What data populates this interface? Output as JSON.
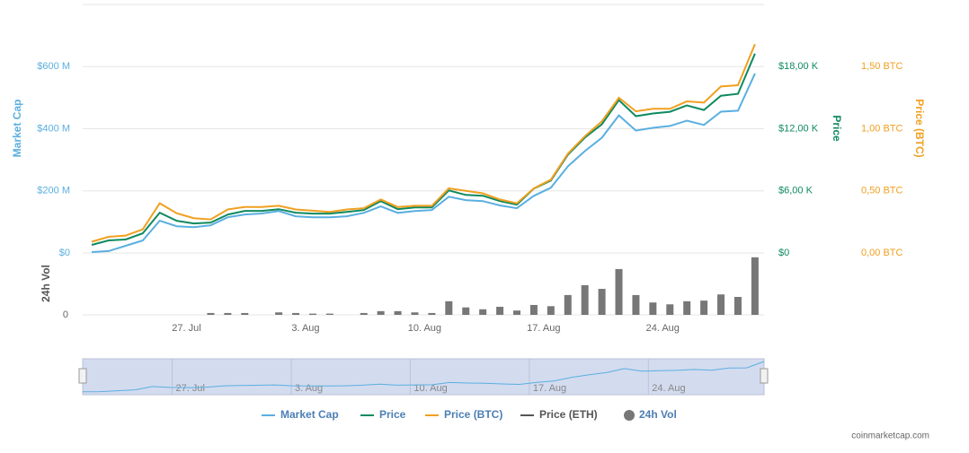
{
  "chart_data": {
    "type": "line",
    "categories": [
      null,
      null,
      null,
      null,
      null,
      null,
      "27. Jul",
      null,
      null,
      null,
      null,
      null,
      null,
      "3. Aug",
      null,
      null,
      null,
      null,
      null,
      null,
      "10. Aug",
      null,
      null,
      null,
      null,
      null,
      null,
      "17. Aug",
      null,
      null,
      null,
      null,
      null,
      null,
      "24. Aug",
      null,
      null,
      null,
      null,
      null
    ],
    "series": [
      {
        "name": "Market Cap",
        "color": "#5aafe0",
        "axis": "y",
        "values": [
          3,
          6,
          23,
          40,
          104,
          86,
          83,
          89,
          115,
          124,
          127,
          135,
          118,
          115,
          115,
          118,
          129,
          150,
          129,
          135,
          138,
          181,
          170,
          167,
          153,
          144,
          184,
          210,
          279,
          328,
          371,
          443,
          394,
          403,
          409,
          426,
          412,
          455,
          458,
          578
        ]
      },
      {
        "name": "Price",
        "color": "#0f8a5f",
        "axis": "y2",
        "values": [
          780,
          1210,
          1300,
          1900,
          3890,
          3110,
          2850,
          2940,
          3710,
          4060,
          4060,
          4230,
          3890,
          3800,
          3800,
          3970,
          4140,
          5010,
          4230,
          4400,
          4400,
          6040,
          5610,
          5530,
          5010,
          4660,
          6220,
          6990,
          9500,
          11140,
          12430,
          14760,
          13210,
          13470,
          13640,
          14250,
          13810,
          15190,
          15370,
          19250
        ]
      },
      {
        "name": "Price (BTC)",
        "color": "#f0a020",
        "axis": "y3",
        "values": [
          0.09,
          0.13,
          0.14,
          0.19,
          0.4,
          0.32,
          0.28,
          0.27,
          0.35,
          0.37,
          0.37,
          0.38,
          0.35,
          0.34,
          0.33,
          0.35,
          0.36,
          0.43,
          0.37,
          0.38,
          0.38,
          0.52,
          0.5,
          0.48,
          0.43,
          0.4,
          0.52,
          0.59,
          0.8,
          0.94,
          1.06,
          1.25,
          1.14,
          1.16,
          1.16,
          1.22,
          1.21,
          1.34,
          1.35,
          1.68
        ]
      },
      {
        "name": "Price (ETH)",
        "color": "#555555",
        "visible": false
      },
      {
        "name": "24h Vol",
        "color": "#777777",
        "type": "bar",
        "axis": "y4",
        "values": [
          0,
          0,
          0,
          0,
          0,
          0,
          0,
          3,
          3,
          3,
          0,
          4,
          3,
          2,
          2,
          0,
          3,
          6,
          6,
          4,
          3,
          22,
          12,
          9,
          13,
          7,
          16,
          14,
          32,
          48,
          42,
          74,
          32,
          20,
          17,
          22,
          23,
          33,
          29,
          93
        ]
      }
    ],
    "ylabel": "Market Cap",
    "ylim": [
      0,
      800
    ],
    "yticks": [
      {
        "value": 0,
        "label": "$0"
      },
      {
        "value": 200,
        "label": "$200 M"
      },
      {
        "value": 400,
        "label": "$400 M"
      },
      {
        "value": 600,
        "label": "$600 M"
      }
    ],
    "y2label": "Price",
    "y2lim": [
      0,
      24000
    ],
    "y2ticks": [
      {
        "value": 0,
        "label": "$0"
      },
      {
        "value": 6000,
        "label": "$6,00 K"
      },
      {
        "value": 12000,
        "label": "$12,00 K"
      },
      {
        "value": 18000,
        "label": "$18,00 K"
      }
    ],
    "y3label": "Price (BTC)",
    "y3lim": [
      0,
      2
    ],
    "y3ticks": [
      {
        "value": 0,
        "label": "0,00 BTC"
      },
      {
        "value": 0.5,
        "label": "0,50 BTC"
      },
      {
        "value": 1,
        "label": "1,00 BTC"
      },
      {
        "value": 1.5,
        "label": "1,50 BTC"
      }
    ],
    "y4label": "24h Vol",
    "y4lim": [
      0,
      100
    ],
    "y4ticks": [
      0
    ],
    "grid": true,
    "legend": "bottom",
    "credit": "coinmarketcap.com"
  }
}
